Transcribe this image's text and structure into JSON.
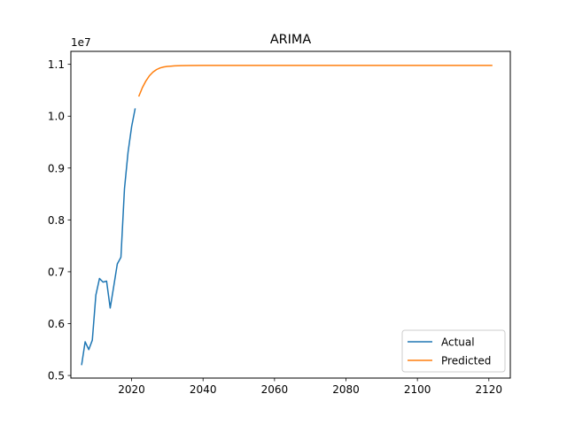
{
  "chart_data": {
    "type": "line",
    "title": "ARIMA",
    "xlabel": "",
    "ylabel": "",
    "y_offset_label": "1e7",
    "xlim": [
      2003,
      2126
    ],
    "ylim": [
      4.95,
      11.25
    ],
    "y_scale_factor": 10000000,
    "x_ticks": [
      2020,
      2040,
      2060,
      2080,
      2100,
      2120
    ],
    "y_ticks": [
      5.0,
      6.0,
      7.0,
      8.0,
      9.0,
      10.0,
      11.0
    ],
    "y_tick_labels": [
      "0.5",
      "0.6",
      "0.7",
      "0.8",
      "0.9",
      "1.0",
      "1.1"
    ],
    "grid": false,
    "legend_position": "lower-right",
    "series": [
      {
        "name": "Actual",
        "color": "#1f77b4",
        "x": [
          2006,
          2007,
          2008,
          2009,
          2010,
          2011,
          2012,
          2013,
          2014,
          2015,
          2016,
          2017,
          2018,
          2019,
          2020,
          2021
        ],
        "y": [
          5.2,
          5.65,
          5.5,
          5.68,
          6.55,
          6.87,
          6.8,
          6.82,
          6.3,
          6.72,
          7.15,
          7.28,
          8.6,
          9.3,
          9.8,
          10.15
        ]
      },
      {
        "name": "Predicted",
        "color": "#ff7f0e",
        "x": [
          2022,
          2023,
          2024,
          2025,
          2026,
          2027,
          2028,
          2029,
          2030,
          2031,
          2032,
          2034,
          2036,
          2040,
          2050,
          2060,
          2080,
          2100,
          2121
        ],
        "y": [
          10.38,
          10.55,
          10.68,
          10.78,
          10.85,
          10.9,
          10.93,
          10.95,
          10.96,
          10.965,
          10.97,
          10.975,
          10.977,
          10.978,
          10.978,
          10.978,
          10.978,
          10.978,
          10.978
        ]
      }
    ]
  }
}
